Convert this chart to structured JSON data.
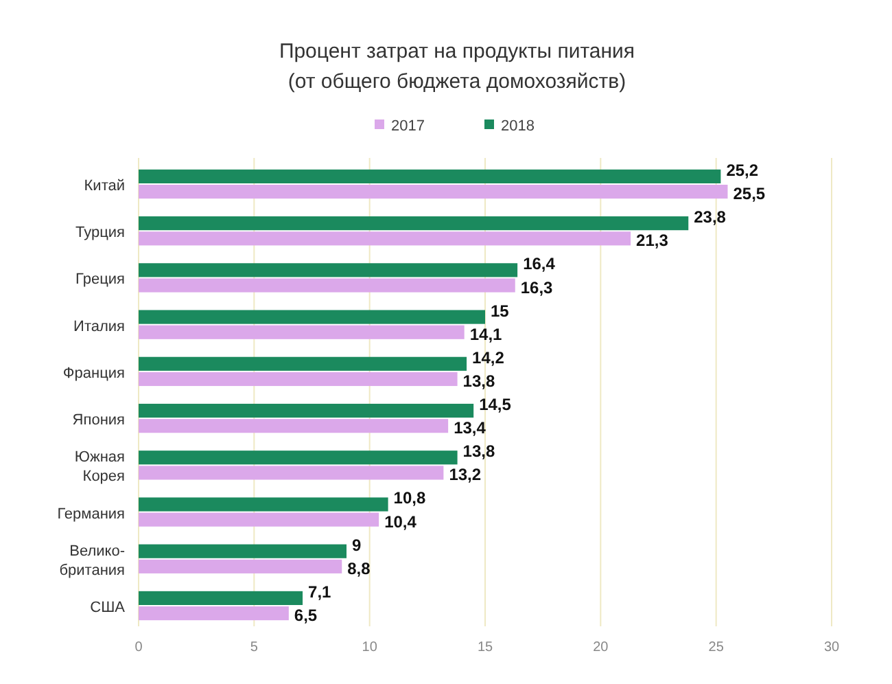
{
  "chart_data": {
    "type": "bar",
    "orientation": "horizontal",
    "title": "Процент затрат на продукты питания",
    "subtitle": "(от общего бюджета домохозяйств)",
    "categories": [
      "Китай",
      "Турция",
      "Греция",
      "Италия",
      "Франция",
      "Япония",
      "Южная Корея",
      "Германия",
      "Велико-британия",
      "США"
    ],
    "series": [
      {
        "name": "2017",
        "color": "#dba8ea",
        "values": [
          25.5,
          21.3,
          16.3,
          14.1,
          13.8,
          13.4,
          13.2,
          10.4,
          8.8,
          6.5
        ],
        "value_labels": [
          "25,5",
          "21,3",
          "16,3",
          "14,1",
          "13,8",
          "13,4",
          "13,2",
          "10,4",
          "8,8",
          "6,5"
        ]
      },
      {
        "name": "2018",
        "color": "#1b8a5e",
        "values": [
          25.2,
          23.8,
          16.4,
          15,
          14.2,
          14.5,
          13.8,
          10.8,
          9,
          7.1
        ],
        "value_labels": [
          "25,2",
          "23,8",
          "16,4",
          "15",
          "14,2",
          "14,5",
          "13,8",
          "10,8",
          "9",
          "7,1"
        ]
      }
    ],
    "xlim": [
      0,
      30
    ],
    "xticks": [
      0,
      5,
      10,
      15,
      20,
      25,
      30
    ],
    "grid": "x",
    "legend": "top"
  }
}
